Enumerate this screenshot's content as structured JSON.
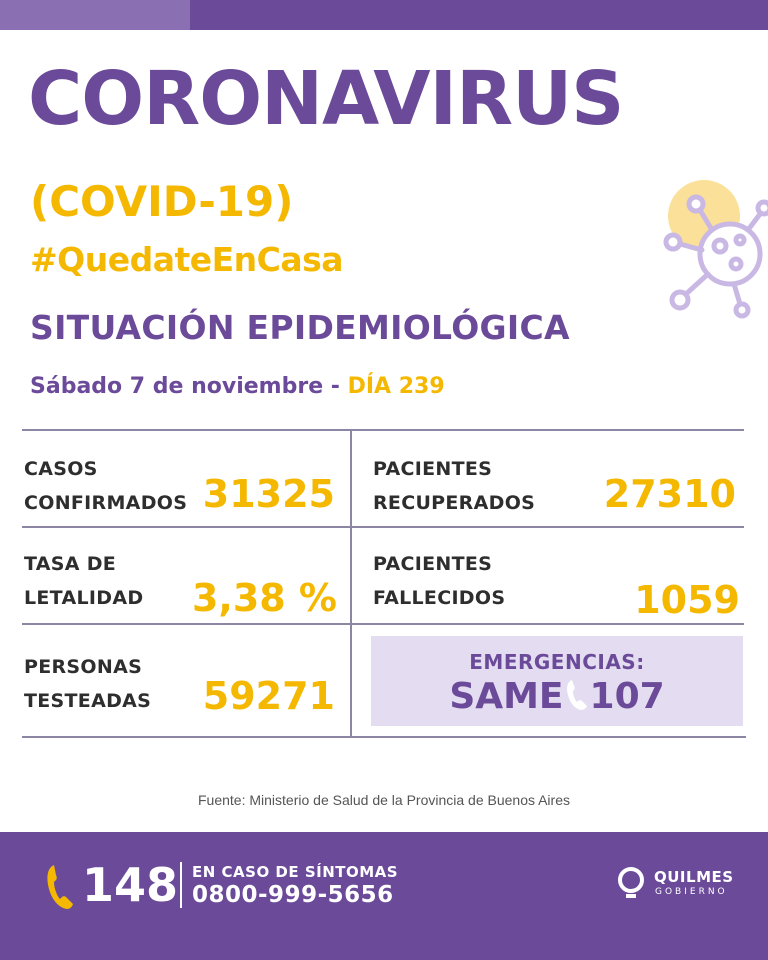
{
  "header": {
    "title": "CORONAVIRUS",
    "subtitle": "(COVID-19)",
    "hashtag": "#QuedateEnCasa",
    "section": "SITUACIÓN EPIDEMIOLÓGICA",
    "date": "Sábado 7 de noviembre - ",
    "day": "DÍA 239"
  },
  "stats": {
    "confirmed": {
      "label_line1": "CASOS",
      "label_line2": "CONFIRMADOS",
      "value": "31325"
    },
    "recovered": {
      "label_line1": "PACIENTES",
      "label_line2": "RECUPERADOS",
      "value": "27310"
    },
    "lethality": {
      "label_line1": "TASA DE",
      "label_line2": "LETALIDAD",
      "value": "3,38 %"
    },
    "deceased": {
      "label_line1": "PACIENTES",
      "label_line2": "FALLECIDOS",
      "value": "1059"
    },
    "tested": {
      "label_line1": "PERSONAS",
      "label_line2": "TESTEADAS",
      "value": "59271"
    }
  },
  "emergency": {
    "label": "EMERGENCIAS:",
    "service": "SAME",
    "number": "107"
  },
  "source": "Fuente: Ministerio de Salud de la Provincia de Buenos Aires",
  "footer": {
    "phone": "148",
    "symptoms_label": "EN CASO DE SÍNTOMAS",
    "toll_free": "0800-999-5656",
    "logo_name": "QUILMES",
    "logo_sub": "GOBIERNO"
  },
  "colors": {
    "purple": "#6a4a99",
    "yellow": "#f5b800",
    "light_purple": "#e4ddf1"
  },
  "icons": [
    "virus-icon",
    "phone-icon",
    "quilmes-logo-icon"
  ]
}
